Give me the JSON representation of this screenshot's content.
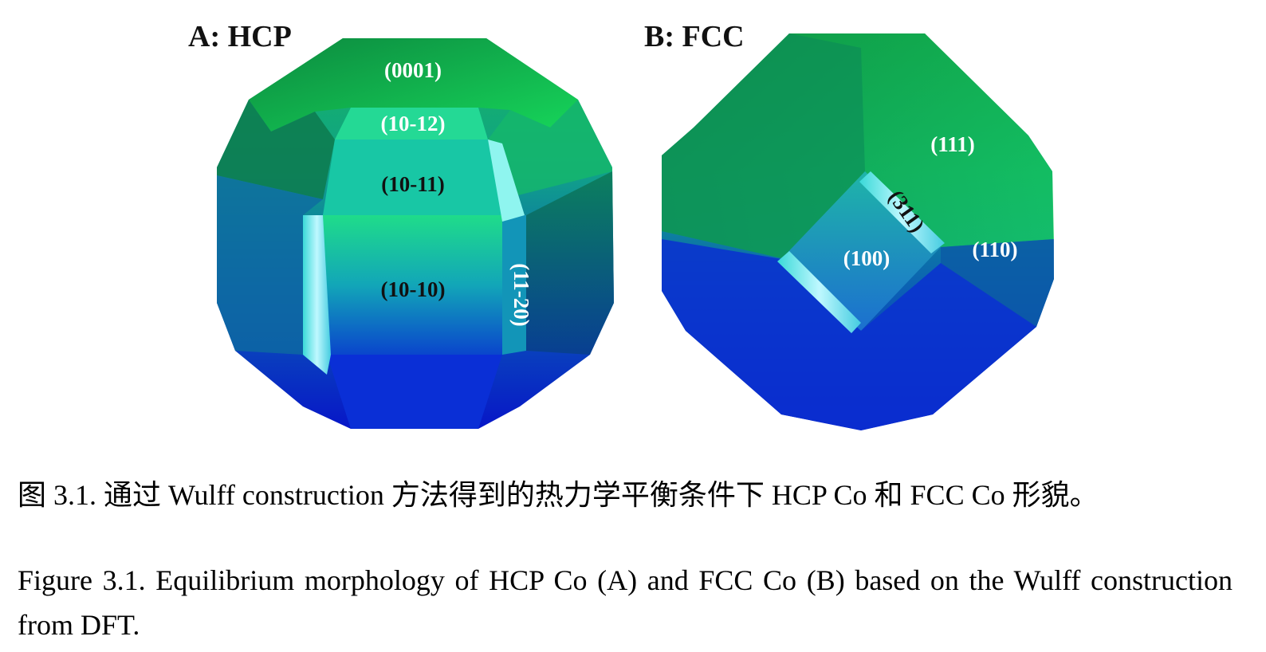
{
  "figure": {
    "panel_a": {
      "title": "A: HCP",
      "facets": {
        "f0001": "(0001)",
        "f1012": "(10-12)",
        "f1011": "(10-11)",
        "f1010": "(10-10)",
        "f1120": "(11-20)"
      }
    },
    "panel_b": {
      "title": "B: FCC",
      "facets": {
        "f111": "(111)",
        "f311": "(311)",
        "f100": "(100)",
        "f110": "(110)"
      }
    },
    "colors": {
      "top_green": "#13c85a",
      "mid_teal": "#119a9a",
      "bottom_blue": "#0a1fd0",
      "highlight": "#7ff2ff"
    }
  },
  "caption": {
    "zh": "图 3.1.  通过 Wulff construction 方法得到的热力学平衡条件下 HCP Co 和 FCC Co 形貌。",
    "en": "Figure 3.1. Equilibrium morphology of HCP Co (A) and FCC Co (B) based on the Wulff construction from DFT."
  }
}
